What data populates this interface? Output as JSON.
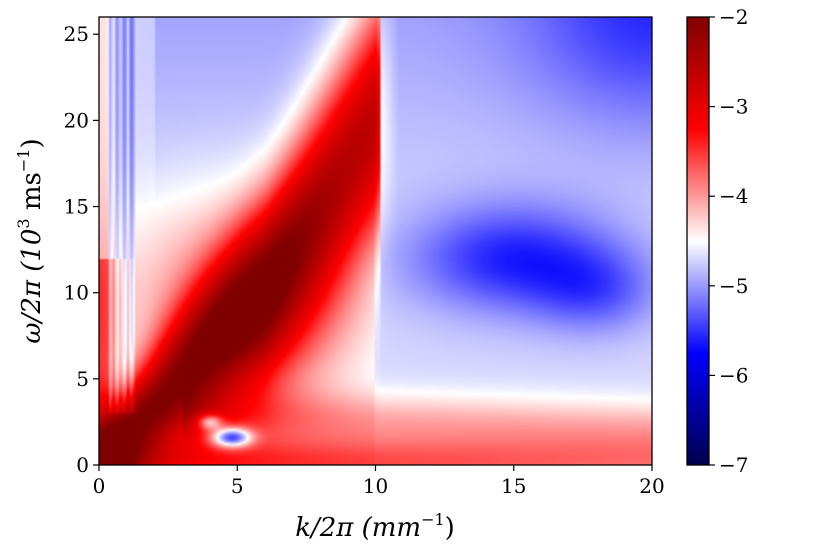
{
  "chart_data": {
    "type": "heatmap",
    "title": "",
    "xlabel": {
      "main": "k/2π (mm",
      "sup": "−1",
      "close": ")"
    },
    "ylabel": {
      "main": "ω/2π (10",
      "sup1": "3",
      "mid": " ms",
      "sup2": "−1",
      "close": ")"
    },
    "xlim": [
      0,
      20
    ],
    "ylim": [
      0,
      26
    ],
    "xticks": [
      0,
      5,
      10,
      15,
      20
    ],
    "xtick_labels": [
      "0",
      "5",
      "10",
      "15",
      "20"
    ],
    "yticks": [
      0,
      5,
      10,
      15,
      20,
      25
    ],
    "ytick_labels": [
      "0",
      "5",
      "10",
      "15",
      "20",
      "25"
    ],
    "colorbar": {
      "cmap": "seismic",
      "range": [
        -7,
        -2
      ],
      "ticks": [
        -2,
        -3,
        -4,
        -5,
        -6,
        -7
      ],
      "tick_labels": [
        "−2",
        "−3",
        "−4",
        "−5",
        "−6",
        "−7"
      ]
    },
    "features": [
      {
        "name": "dispersion-ridge",
        "description": "high-intensity ridge from origin to about (9.5, 19)",
        "peak_value": -2.3
      },
      {
        "name": "low-frequency-band",
        "description": "elevated band along omega near 0 to 1",
        "peak_value": -3.5
      },
      {
        "name": "blue-lobe",
        "description": "minimum around (15, 12)",
        "peak_value": -5.6
      },
      {
        "name": "dark-spots",
        "description": "minima near (4.8, 1.5)",
        "peak_value": -6.6
      }
    ]
  }
}
